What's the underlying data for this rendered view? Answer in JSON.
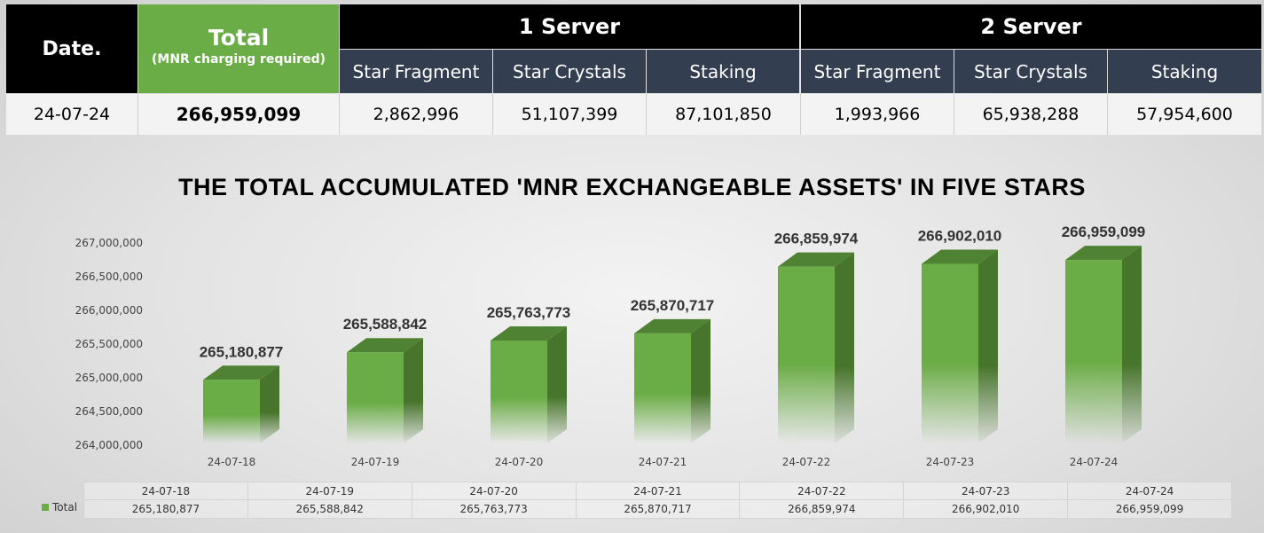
{
  "table": {
    "date_header": "Date.",
    "total_header": "Total",
    "total_sub": "(MNR charging required)",
    "server1_header": "1 Server",
    "server2_header": "2 Server",
    "sub_headers": [
      "Star Fragment",
      "Star Crystals",
      "Staking",
      "Star Fragment",
      "Star Crystals",
      "Staking"
    ],
    "row": {
      "date": "24-07-24",
      "total": "266,959,099",
      "values": [
        "2,862,996",
        "51,107,399",
        "87,101,850",
        "1,993,966",
        "65,938,288",
        "57,954,600"
      ]
    },
    "colors": {
      "header_black": "#000000",
      "total_green": "#6aac45",
      "sub_header": "#333f50"
    }
  },
  "chart_data": {
    "type": "bar",
    "title": "THE TOTAL ACCUMULATED 'MNR EXCHANGEABLE ASSETS' IN FIVE STARS",
    "categories": [
      "24-07-18",
      "24-07-19",
      "24-07-20",
      "24-07-21",
      "24-07-22",
      "24-07-23",
      "24-07-24"
    ],
    "series": [
      {
        "name": "Total",
        "values": [
          265180877,
          265588842,
          265763773,
          265870717,
          266859974,
          266902010,
          266959099
        ],
        "labels": [
          "265,180,877",
          "265,588,842",
          "265,763,773",
          "265,870,717",
          "266,859,974",
          "266,902,010",
          "266,959,099"
        ],
        "color": "#6aac45"
      }
    ],
    "yticks": [
      "264,000,000",
      "264,500,000",
      "265,000,000",
      "265,500,000",
      "266,000,000",
      "266,500,000",
      "267,000,000"
    ],
    "ylim": [
      264000000,
      267000000
    ],
    "grid": false,
    "style": "3d-column",
    "data_table": true
  }
}
